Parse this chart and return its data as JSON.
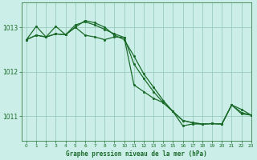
{
  "title": "Graphe pression niveau de la mer (hPa)",
  "background_color": "#cceee8",
  "grid_color": "#99ccbb",
  "line_color": "#1a6b2a",
  "xlim": [
    -0.5,
    23
  ],
  "ylim": [
    1010.45,
    1013.55
  ],
  "yticks": [
    1011,
    1012,
    1013
  ],
  "xticks": [
    0,
    1,
    2,
    3,
    4,
    5,
    6,
    7,
    8,
    9,
    10,
    11,
    12,
    13,
    14,
    15,
    16,
    17,
    18,
    19,
    20,
    21,
    22,
    23
  ],
  "series1": [
    1012.72,
    1012.82,
    1012.78,
    1012.85,
    1012.83,
    1013.05,
    1013.12,
    1013.05,
    1012.95,
    1012.85,
    1012.77,
    1012.17,
    1011.85,
    1011.55,
    1011.3,
    1011.1,
    1010.9,
    1010.85,
    1010.82,
    1010.83,
    1010.82,
    1011.25,
    1011.05,
    1011.02
  ],
  "series2": [
    1012.72,
    1013.02,
    1012.78,
    1013.02,
    1012.83,
    1013.0,
    1013.15,
    1013.1,
    1013.0,
    1012.82,
    1012.72,
    1012.35,
    1011.95,
    1011.65,
    1011.35,
    1011.1,
    1010.9,
    1010.85,
    1010.82,
    1010.83,
    1010.82,
    1011.25,
    1011.15,
    1011.02
  ],
  "series3": [
    1012.72,
    1012.82,
    1012.78,
    1012.85,
    1012.83,
    1013.0,
    1012.82,
    1012.78,
    1012.72,
    1012.78,
    1012.77,
    1011.7,
    1011.55,
    1011.4,
    1011.3,
    1011.1,
    1010.78,
    1010.82,
    1010.82,
    1010.83,
    1010.82,
    1011.25,
    1011.08,
    1011.02
  ]
}
